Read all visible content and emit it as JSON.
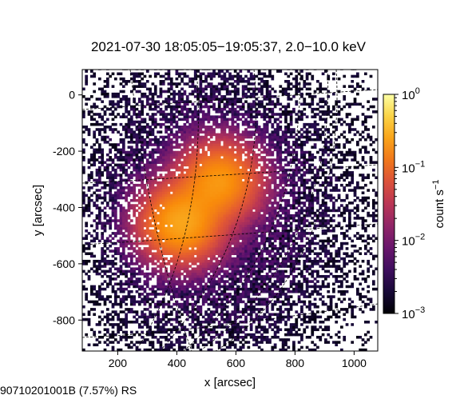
{
  "chart_data": {
    "type": "heatmap",
    "title": "2021-07-30 18:05:05−19:05:37, 2.0−10.0 keV",
    "xlabel": "x [arcsec]",
    "ylabel": "y [arcsec]",
    "xlim": [
      80,
      1080
    ],
    "ylim": [
      -910,
      90
    ],
    "x_ticks": [
      200,
      400,
      600,
      800,
      1000
    ],
    "x_tick_labels": [
      "200",
      "400",
      "600",
      "800",
      "1000"
    ],
    "y_ticks": [
      0,
      -200,
      -400,
      -600,
      -800
    ],
    "y_tick_labels": [
      "0",
      "-200",
      "-400",
      "-600",
      "-800"
    ],
    "colorbar": {
      "label_main": "count s",
      "label_sup": "−1",
      "scale": "log",
      "range": [
        0.001,
        1
      ],
      "ticks": [
        {
          "value": 1,
          "base": "10",
          "exp": "0"
        },
        {
          "value": 0.1,
          "base": "10",
          "exp": "−1"
        },
        {
          "value": 0.01,
          "base": "10",
          "exp": "−2"
        },
        {
          "value": 0.001,
          "base": "10",
          "exp": "−3"
        }
      ],
      "colormap": "inferno"
    },
    "sources": [
      {
        "name": "",
        "x": 545,
        "y": -305,
        "peak": 0.2
      },
      {
        "name": "",
        "x": 415,
        "y": -455,
        "peak": 0.25
      }
    ],
    "background_level": 0.008,
    "grid": "heliographic-dashed",
    "grid_color": "#000000"
  },
  "footer_text": "90710201001B (7.57%) RS"
}
